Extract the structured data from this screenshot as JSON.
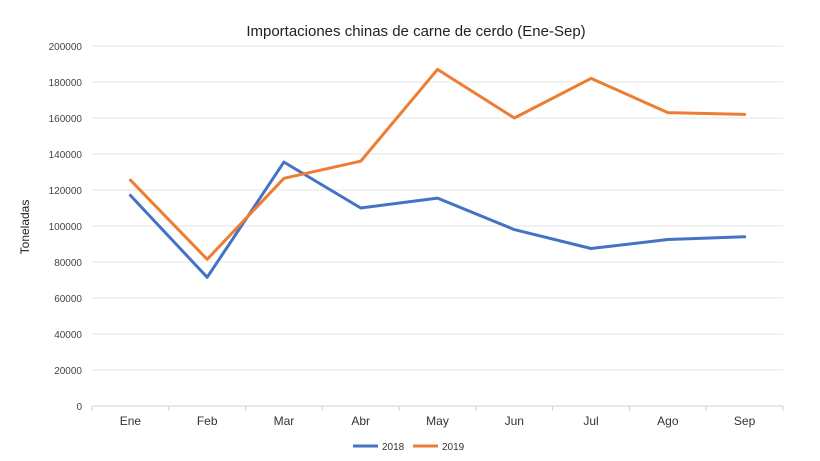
{
  "chart_data": {
    "type": "line",
    "title": "Importaciones chinas de carne de cerdo (Ene-Sep)",
    "xlabel": "",
    "ylabel": "Toneladas",
    "categories": [
      "Ene",
      "Feb",
      "Mar",
      "Abr",
      "May",
      "Jun",
      "Jul",
      "Ago",
      "Sep"
    ],
    "yticks": [
      "0",
      "20000",
      "40000",
      "60000",
      "80000",
      "100000",
      "120000",
      "140000",
      "160000",
      "180000",
      "200000"
    ],
    "ylim": [
      0,
      200000
    ],
    "grid": true,
    "legend_position": "bottom",
    "series": [
      {
        "name": "2018",
        "color": "#4472C4",
        "values": [
          117000,
          71500,
          135500,
          110000,
          115500,
          98000,
          87500,
          92500,
          94000
        ]
      },
      {
        "name": "2019",
        "color": "#ED7D31",
        "values": [
          125500,
          81500,
          126500,
          136000,
          187000,
          160000,
          182000,
          163000,
          162000
        ]
      }
    ]
  }
}
